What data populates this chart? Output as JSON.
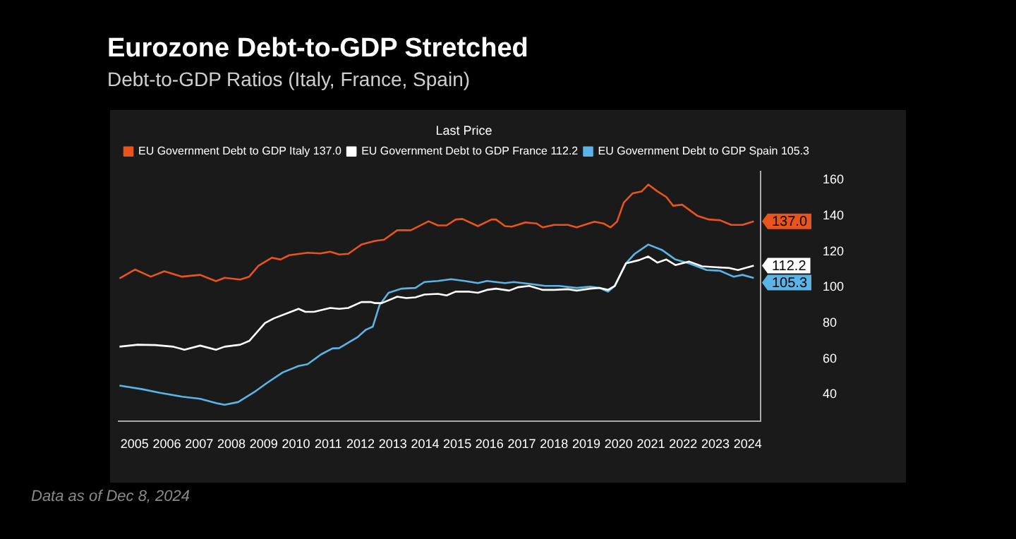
{
  "chart_data": {
    "type": "line",
    "title": "Eurozone Debt-to-GDP Stretched",
    "subtitle": "Debt-to-GDP Ratios (Italy, France, Spain)",
    "legend_title": "Last Price",
    "legend": "top left",
    "annotations": [
      "Data as of Dec 8, 2024"
    ],
    "xlim": [
      2005,
      2024.9
    ],
    "ylim": [
      25,
      165
    ],
    "xticks": [
      {
        "value": 2005.5,
        "label": "2005"
      },
      {
        "value": 2006.5,
        "label": "2006"
      },
      {
        "value": 2007.5,
        "label": "2007"
      },
      {
        "value": 2008.5,
        "label": "2008"
      },
      {
        "value": 2009.5,
        "label": "2009"
      },
      {
        "value": 2010.5,
        "label": "2010"
      },
      {
        "value": 2011.5,
        "label": "2011"
      },
      {
        "value": 2012.5,
        "label": "2012"
      },
      {
        "value": 2013.5,
        "label": "2013"
      },
      {
        "value": 2014.5,
        "label": "2014"
      },
      {
        "value": 2015.5,
        "label": "2015"
      },
      {
        "value": 2016.5,
        "label": "2016"
      },
      {
        "value": 2017.5,
        "label": "2017"
      },
      {
        "value": 2018.5,
        "label": "2018"
      },
      {
        "value": 2019.5,
        "label": "2019"
      },
      {
        "value": 2020.5,
        "label": "2020"
      },
      {
        "value": 2021.5,
        "label": "2021"
      },
      {
        "value": 2022.5,
        "label": "2022"
      },
      {
        "value": 2023.5,
        "label": "2023"
      },
      {
        "value": 2024.5,
        "label": "2024"
      }
    ],
    "yticks": [
      40,
      60,
      80,
      100,
      120,
      140,
      160
    ],
    "grid": false,
    "marker": "none",
    "series": [
      {
        "name": "EU Government Debt to GDP Italy 137.0",
        "color": "#e8541c",
        "x": [
          2005.03,
          2005.51,
          2006.0,
          2006.42,
          2006.97,
          2007.53,
          2008.02,
          2008.29,
          2008.77,
          2009.05,
          2009.33,
          2009.75,
          2010.02,
          2010.29,
          2010.86,
          2011.26,
          2011.56,
          2011.84,
          2012.12,
          2012.53,
          2012.95,
          2013.23,
          2013.64,
          2014.06,
          2014.61,
          2014.9,
          2015.17,
          2015.45,
          2015.66,
          2016.14,
          2016.56,
          2016.7,
          2016.98,
          2017.19,
          2017.61,
          2017.95,
          2018.15,
          2018.5,
          2018.93,
          2019.2,
          2019.75,
          2020.03,
          2020.25,
          2020.45,
          2020.66,
          2020.94,
          2021.22,
          2021.42,
          2021.7,
          2021.98,
          2022.19,
          2022.47,
          2022.95,
          2023.3,
          2023.64,
          2023.99,
          2024.34,
          2024.69
        ],
        "values": [
          105,
          110,
          106,
          109,
          106,
          107,
          103.5,
          105.4,
          104.4,
          106,
          112,
          116.6,
          115.6,
          118,
          119.4,
          119,
          120,
          118.4,
          118.8,
          124,
          126,
          126.7,
          132,
          132,
          137,
          134.7,
          134.7,
          138,
          138.3,
          134.3,
          138,
          138,
          134.3,
          134,
          136.4,
          135.8,
          133.6,
          135,
          135,
          133.6,
          136.8,
          135.8,
          133.6,
          136.8,
          147.5,
          152.7,
          153.8,
          157.6,
          153.8,
          150.6,
          145.7,
          146.3,
          140,
          138,
          137.6,
          135,
          135,
          137.0
        ],
        "value_labels": [
          null,
          null,
          null,
          null,
          null,
          null,
          null,
          null,
          null,
          null,
          null,
          null,
          null,
          null,
          null,
          null,
          null,
          null,
          null,
          null,
          null,
          null,
          null,
          null,
          null,
          null,
          null,
          null,
          null,
          null,
          null,
          null,
          null,
          null,
          null,
          null,
          null,
          null,
          null,
          null,
          null,
          null,
          null,
          null,
          null,
          null,
          null,
          null,
          null,
          null,
          null,
          null,
          null,
          null,
          null,
          null,
          null,
          "137.0"
        ]
      },
      {
        "name": "EU Government Debt to GDP France 112.2",
        "color": "#ffffff",
        "x": [
          2005.03,
          2005.59,
          2006.14,
          2006.7,
          2007.04,
          2007.53,
          2008.02,
          2008.29,
          2008.77,
          2009.05,
          2009.54,
          2009.82,
          2010.3,
          2010.58,
          2010.79,
          2011.06,
          2011.56,
          2011.84,
          2012.12,
          2012.53,
          2012.81,
          2012.95,
          2013.16,
          2013.64,
          2013.92,
          2014.2,
          2014.48,
          2014.9,
          2015.17,
          2015.45,
          2015.87,
          2016.14,
          2016.42,
          2016.7,
          2017.11,
          2017.39,
          2017.73,
          2018.15,
          2018.5,
          2018.93,
          2019.2,
          2019.62,
          2019.9,
          2020.17,
          2020.38,
          2020.73,
          2021.14,
          2021.42,
          2021.7,
          2021.98,
          2022.26,
          2022.68,
          2023.09,
          2023.51,
          2023.92,
          2024.2,
          2024.69
        ],
        "values": [
          66.8,
          67.9,
          67.7,
          66.8,
          65.1,
          67.4,
          65.1,
          66.8,
          67.9,
          70,
          80,
          82.7,
          86,
          88,
          86.3,
          86.3,
          88.5,
          88,
          88.5,
          91.8,
          91.8,
          91.2,
          91.2,
          94.8,
          94,
          94.4,
          96,
          96.4,
          95.5,
          97.6,
          97.6,
          97,
          98.6,
          99.3,
          98.2,
          100.1,
          100.8,
          98.6,
          98.6,
          99,
          98.2,
          99.3,
          99.7,
          98.6,
          100.8,
          113.5,
          115.3,
          117.3,
          113.9,
          115.6,
          112.5,
          114.5,
          111.8,
          111.3,
          110.9,
          109.7,
          112.2
        ],
        "value_labels": [
          null,
          null,
          null,
          null,
          null,
          null,
          null,
          null,
          null,
          null,
          null,
          null,
          null,
          null,
          null,
          null,
          null,
          null,
          null,
          null,
          null,
          null,
          null,
          null,
          null,
          null,
          null,
          null,
          null,
          null,
          null,
          null,
          null,
          null,
          null,
          null,
          null,
          null,
          null,
          null,
          null,
          null,
          null,
          null,
          null,
          null,
          null,
          null,
          null,
          null,
          null,
          null,
          null,
          null,
          null,
          null,
          "112.2"
        ]
      },
      {
        "name": "EU Government Debt to GDP Spain 105.3",
        "color": "#5ab4e6",
        "x": [
          2005.03,
          2005.73,
          2006.28,
          2006.97,
          2007.53,
          2008.08,
          2008.29,
          2008.71,
          2009.2,
          2009.61,
          2010.09,
          2010.58,
          2010.86,
          2011.28,
          2011.63,
          2011.84,
          2012.4,
          2012.67,
          2012.88,
          2013.09,
          2013.37,
          2013.78,
          2014.2,
          2014.48,
          2014.9,
          2015.31,
          2015.73,
          2016.14,
          2016.42,
          2016.98,
          2017.25,
          2017.81,
          2018.23,
          2018.65,
          2019.2,
          2019.62,
          2019.9,
          2020.17,
          2020.38,
          2020.73,
          2021.0,
          2021.42,
          2021.84,
          2022.26,
          2022.68,
          2023.23,
          2023.64,
          2024.06,
          2024.34,
          2024.69
        ],
        "values": [
          45,
          43,
          41,
          38.8,
          37.6,
          35,
          34.3,
          35.8,
          41.3,
          46.6,
          52.4,
          56,
          57,
          62.5,
          65.8,
          66,
          72,
          76.3,
          78,
          90.1,
          97,
          99.3,
          99.7,
          103,
          103.6,
          104.6,
          103.6,
          102.4,
          103.6,
          102.4,
          103,
          101.8,
          100.8,
          100.8,
          99.7,
          100.4,
          99.7,
          97.6,
          100.8,
          113.5,
          118.8,
          124,
          121,
          115.6,
          113.5,
          109.7,
          109.3,
          106,
          107,
          105.3
        ],
        "value_labels": [
          null,
          null,
          null,
          null,
          null,
          null,
          null,
          null,
          null,
          null,
          null,
          null,
          null,
          null,
          null,
          null,
          null,
          null,
          null,
          null,
          null,
          null,
          null,
          null,
          null,
          null,
          null,
          null,
          null,
          null,
          null,
          null,
          null,
          null,
          null,
          null,
          null,
          null,
          null,
          null,
          null,
          null,
          null,
          null,
          null,
          null,
          null,
          null,
          null,
          "105.3"
        ]
      }
    ]
  }
}
